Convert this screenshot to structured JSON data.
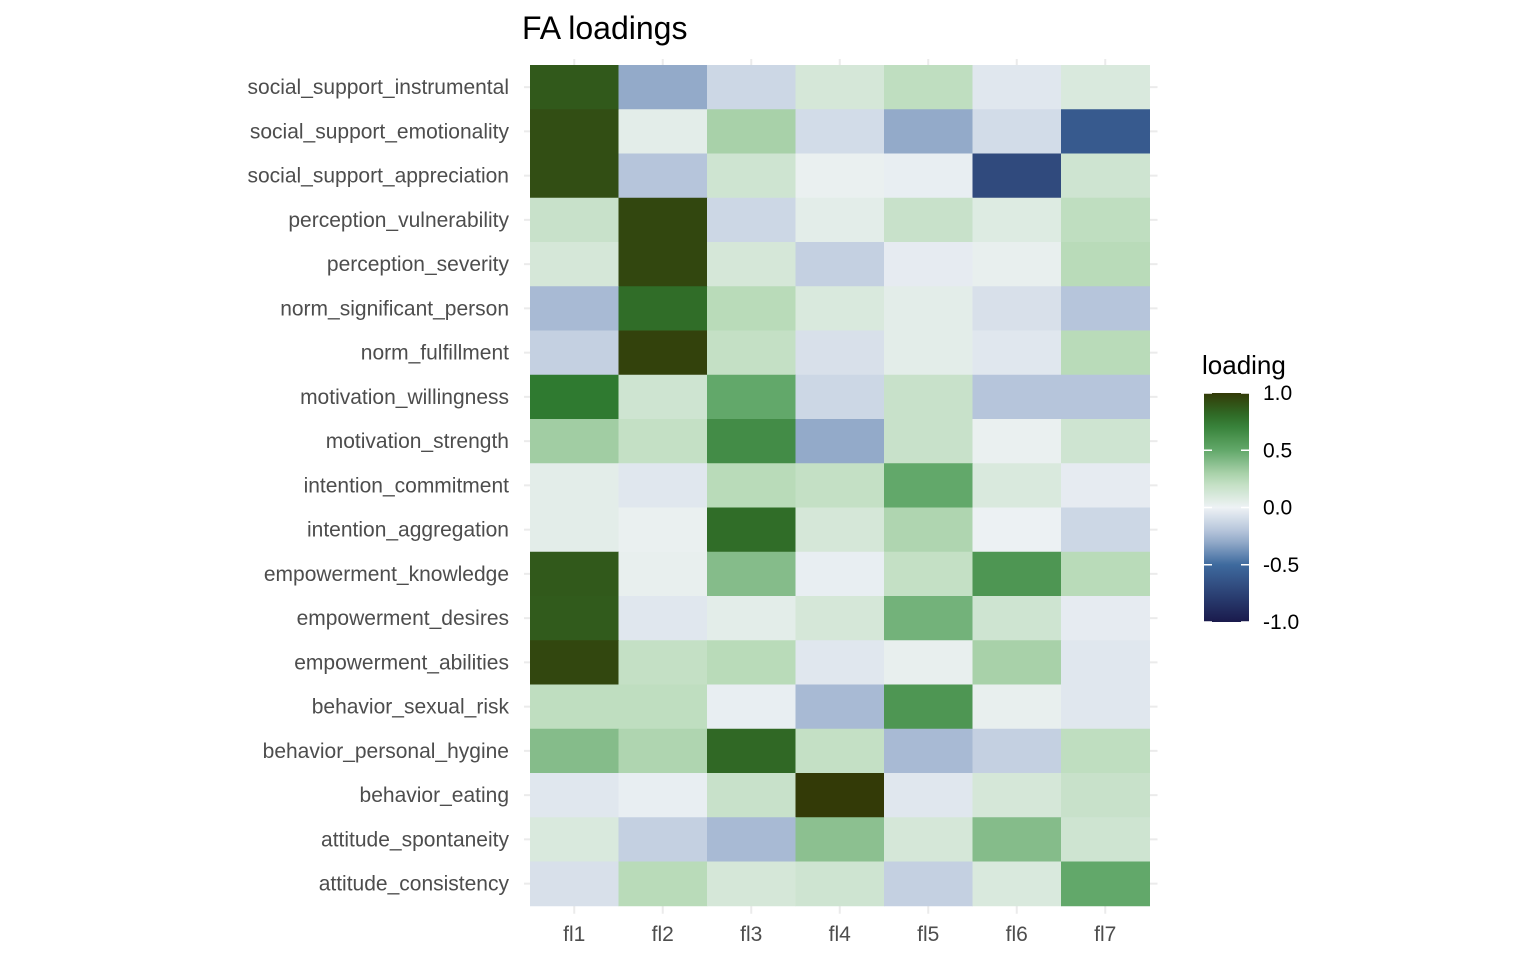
{
  "chart_data": {
    "type": "heatmap",
    "title": "FA loadings",
    "xlabel": "",
    "ylabel": "",
    "x_categories": [
      "fl1",
      "fl2",
      "fl3",
      "fl4",
      "fl5",
      "fl6",
      "fl7"
    ],
    "y_categories": [
      "social_support_instrumental",
      "social_support_emotionality",
      "social_support_appreciation",
      "perception_vulnerability",
      "perception_severity",
      "norm_significant_person",
      "norm_fulfillment",
      "motivation_willingness",
      "motivation_strength",
      "intention_commitment",
      "intention_aggregation",
      "empowerment_knowledge",
      "empowerment_desires",
      "empowerment_abilities",
      "behavior_sexual_risk",
      "behavior_personal_hygine",
      "behavior_eating",
      "attitude_spontaneity",
      "attitude_consistency"
    ],
    "values": [
      [
        0.88,
        -0.3,
        -0.12,
        0.12,
        0.22,
        -0.05,
        0.1
      ],
      [
        0.92,
        0.05,
        0.3,
        -0.1,
        -0.3,
        -0.1,
        -0.6
      ],
      [
        0.92,
        -0.2,
        0.15,
        0.02,
        -0.02,
        -0.7,
        0.15
      ],
      [
        0.18,
        0.95,
        -0.12,
        0.05,
        0.18,
        0.08,
        0.22
      ],
      [
        0.12,
        0.95,
        0.12,
        -0.15,
        -0.03,
        0.03,
        0.25
      ],
      [
        -0.25,
        0.8,
        0.25,
        0.1,
        0.05,
        -0.08,
        -0.2
      ],
      [
        -0.15,
        0.97,
        0.2,
        -0.08,
        0.05,
        -0.05,
        0.25
      ],
      [
        0.75,
        0.15,
        0.5,
        -0.12,
        0.18,
        -0.2,
        -0.2
      ],
      [
        0.32,
        0.2,
        0.65,
        -0.3,
        0.18,
        0.02,
        0.15
      ],
      [
        0.05,
        -0.05,
        0.25,
        0.2,
        0.5,
        0.1,
        -0.03
      ],
      [
        0.05,
        0.02,
        0.8,
        0.12,
        0.28,
        0.01,
        -0.12
      ],
      [
        0.88,
        0.03,
        0.4,
        -0.02,
        0.2,
        0.6,
        0.25
      ],
      [
        0.87,
        -0.05,
        0.05,
        0.12,
        0.45,
        0.15,
        -0.03
      ],
      [
        0.95,
        0.2,
        0.25,
        -0.05,
        0.03,
        0.3,
        -0.05
      ],
      [
        0.22,
        0.22,
        -0.02,
        -0.25,
        0.6,
        0.03,
        -0.05
      ],
      [
        0.4,
        0.28,
        0.82,
        0.2,
        -0.25,
        -0.15,
        0.22
      ],
      [
        -0.05,
        -0.02,
        0.18,
        1.0,
        -0.05,
        0.12,
        0.18
      ],
      [
        0.1,
        -0.15,
        -0.25,
        0.38,
        0.12,
        0.4,
        0.15
      ],
      [
        -0.08,
        0.25,
        0.12,
        0.15,
        -0.15,
        0.1,
        0.5
      ]
    ],
    "legend": {
      "title": "loading",
      "ticks": [
        "1.0",
        "0.5",
        "0.0",
        "-0.5",
        "-1.0"
      ],
      "range": [
        -1.0,
        1.0
      ],
      "placement": "right"
    },
    "color_scale": {
      "stops": [
        {
          "value": -1.0,
          "color": "#1a1a4c"
        },
        {
          "value": -0.5,
          "color": "#3e6a9e"
        },
        {
          "value": -0.25,
          "color": "#a8bad4"
        },
        {
          "value": 0.0,
          "color": "#eef2f5"
        },
        {
          "value": 0.25,
          "color": "#b9dbb9"
        },
        {
          "value": 0.5,
          "color": "#62a86a"
        },
        {
          "value": 0.75,
          "color": "#2f7a30"
        },
        {
          "value": 1.0,
          "color": "#333a07"
        }
      ]
    },
    "grid": true,
    "background": "#ebebeb",
    "gridline_color": "#ffffff"
  }
}
